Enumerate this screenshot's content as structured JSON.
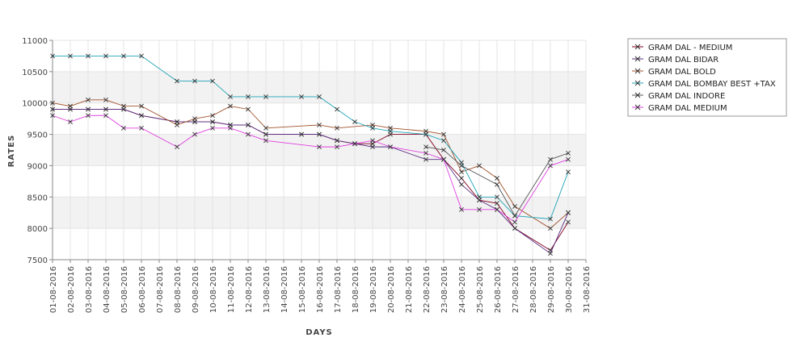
{
  "chart_data": {
    "type": "line",
    "title": "",
    "xlabel": "DAYS",
    "ylabel": "RATES",
    "ylim": [
      7500,
      11000
    ],
    "yticks": [
      7500,
      8000,
      8500,
      9000,
      9500,
      10000,
      10500,
      11000
    ],
    "grid": true,
    "legend_position": "top-right",
    "categories": [
      "01-08-2016",
      "02-08-2016",
      "03-08-2016",
      "04-08-2016",
      "05-08-2016",
      "06-08-2016",
      "07-08-2016",
      "08-08-2016",
      "09-08-2016",
      "10-08-2016",
      "11-08-2016",
      "12-08-2016",
      "13-08-2016",
      "14-08-2016",
      "15-08-2016",
      "16-08-2016",
      "17-08-2016",
      "18-08-2016",
      "19-08-2016",
      "20-08-2016",
      "21-08-2016",
      "22-08-2016",
      "23-08-2016",
      "24-08-2016",
      "25-08-2016",
      "26-08-2016",
      "27-08-2016",
      "28-08-2016",
      "29-08-2016",
      "30-08-2016",
      "31-08-2016"
    ],
    "series": [
      {
        "name": "GRAM DAL - MEDIUM",
        "color": "#800020",
        "values": [
          9900,
          9900,
          9900,
          9900,
          9900,
          9800,
          null,
          9700,
          9700,
          9700,
          9650,
          9650,
          9500,
          null,
          9500,
          9500,
          9400,
          9350,
          9350,
          9500,
          null,
          9500,
          9100,
          8800,
          8450,
          8400,
          8000,
          null,
          7650,
          8100,
          null
        ]
      },
      {
        "name": "GRAM DAL BIDAR",
        "color": "#5a2d82",
        "values": [
          9900,
          9900,
          9900,
          9900,
          9900,
          9800,
          null,
          9700,
          9700,
          9700,
          9650,
          9650,
          9500,
          null,
          9500,
          9500,
          9400,
          9350,
          9300,
          9300,
          null,
          9100,
          9100,
          8700,
          8450,
          8300,
          8000,
          null,
          7600,
          8250,
          null
        ]
      },
      {
        "name": "GRAM DAL BOLD",
        "color": "#a0522d",
        "values": [
          10000,
          9950,
          10050,
          10050,
          9950,
          9950,
          null,
          9650,
          9750,
          9800,
          9950,
          9900,
          9600,
          null,
          null,
          9650,
          9600,
          null,
          9650,
          9600,
          null,
          9550,
          9500,
          8900,
          9000,
          8800,
          8350,
          null,
          8000,
          8250,
          null
        ]
      },
      {
        "name": "GRAM DAL BOMBAY BEST +TAX",
        "color": "#1fa3b5",
        "values": [
          10750,
          10750,
          10750,
          10750,
          10750,
          10750,
          null,
          10350,
          10350,
          10350,
          10100,
          10100,
          10100,
          null,
          10100,
          10100,
          9900,
          9700,
          9600,
          9550,
          null,
          9500,
          9400,
          9050,
          8500,
          8500,
          8200,
          null,
          8150,
          8900,
          null
        ]
      },
      {
        "name": "GRAM DAL INDORE",
        "color": "#555555",
        "values": [
          null,
          null,
          null,
          null,
          null,
          null,
          null,
          null,
          null,
          null,
          null,
          null,
          null,
          null,
          null,
          null,
          null,
          null,
          null,
          null,
          null,
          9300,
          9250,
          9000,
          null,
          8700,
          8200,
          null,
          9100,
          9200,
          null
        ]
      },
      {
        "name": "GRAM DAL MEDIUM",
        "color": "#e040e0",
        "values": [
          9800,
          9700,
          9800,
          9800,
          9600,
          9600,
          null,
          9300,
          9500,
          9600,
          9600,
          9500,
          9400,
          null,
          null,
          9300,
          9300,
          9350,
          9400,
          9300,
          null,
          9200,
          9100,
          8300,
          8300,
          8300,
          8100,
          null,
          9000,
          9100,
          null
        ]
      }
    ]
  }
}
